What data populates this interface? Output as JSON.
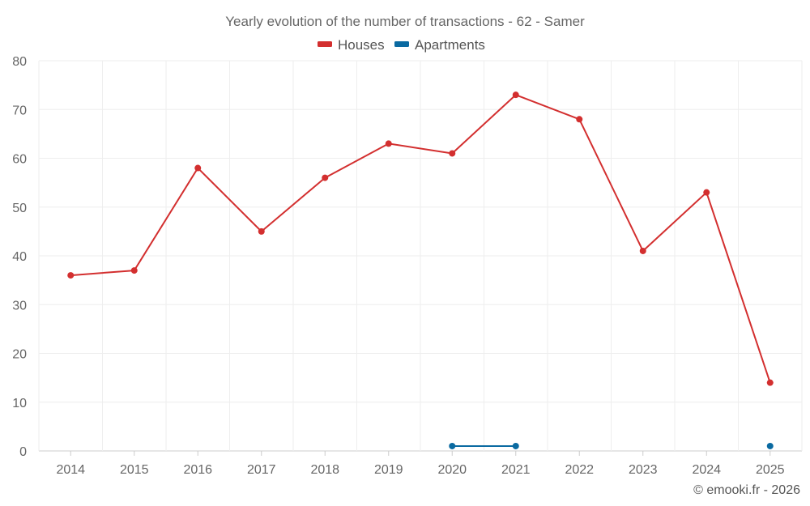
{
  "chart_data": {
    "type": "line",
    "title": "Yearly evolution of the number of transactions - 62 - Samer",
    "categories": [
      "2014",
      "2015",
      "2016",
      "2017",
      "2018",
      "2019",
      "2020",
      "2021",
      "2022",
      "2023",
      "2024",
      "2025"
    ],
    "series": [
      {
        "name": "Houses",
        "color": "#d32f2f",
        "values": [
          36,
          37,
          58,
          45,
          56,
          63,
          61,
          73,
          68,
          41,
          53,
          14
        ]
      },
      {
        "name": "Apartments",
        "color": "#0a6aa1",
        "values": [
          null,
          null,
          null,
          null,
          null,
          null,
          1,
          1,
          null,
          null,
          null,
          1
        ]
      }
    ],
    "ylim": [
      0,
      80
    ],
    "yticks": [
      0,
      10,
      20,
      30,
      40,
      50,
      60,
      70,
      80
    ],
    "xlabel": "",
    "ylabel": "",
    "grid": true,
    "legend_position": "top-center"
  },
  "credit": "© emooki.fr - 2026"
}
